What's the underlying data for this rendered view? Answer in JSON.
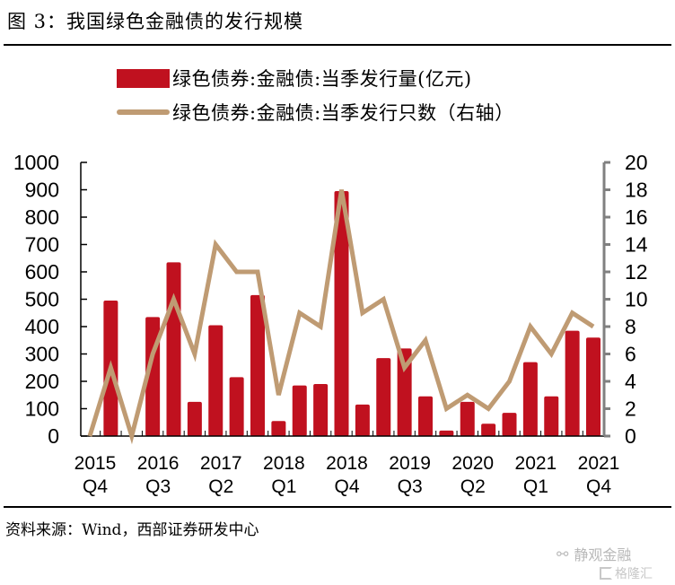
{
  "header": {
    "title": "图 3：我国绿色金融债的发行规模"
  },
  "legend": {
    "items": [
      {
        "label": "绿色债券:金融债:当季发行量(亿元)",
        "type": "bar",
        "color": "#C0111F"
      },
      {
        "label": "绿色债券:金融债:当季发行只数（右轴）",
        "type": "line",
        "color": "#BF9B73"
      }
    ]
  },
  "chart_data": {
    "type": "bar+line",
    "title": "我国绿色金融债的发行规模",
    "categories": [
      "2015Q4",
      "2016Q1",
      "2016Q2",
      "2016Q3",
      "2016Q4",
      "2017Q1",
      "2017Q2",
      "2017Q3",
      "2017Q4",
      "2018Q1",
      "2018Q2",
      "2018Q3",
      "2018Q4",
      "2019Q1",
      "2019Q2",
      "2019Q3",
      "2019Q4",
      "2020Q1",
      "2020Q2",
      "2020Q3",
      "2020Q4",
      "2021Q1",
      "2021Q2",
      "2021Q3",
      "2021Q4"
    ],
    "tick_labels": [
      {
        "index": 0,
        "year": "2015",
        "quarter": "Q4"
      },
      {
        "index": 3,
        "year": "2016",
        "quarter": "Q3"
      },
      {
        "index": 6,
        "year": "2017",
        "quarter": "Q2"
      },
      {
        "index": 9,
        "year": "2018",
        "quarter": "Q1"
      },
      {
        "index": 12,
        "year": "2018",
        "quarter": "Q4"
      },
      {
        "index": 15,
        "year": "2019",
        "quarter": "Q3"
      },
      {
        "index": 18,
        "year": "2020",
        "quarter": "Q2"
      },
      {
        "index": 21,
        "year": "2021",
        "quarter": "Q1"
      },
      {
        "index": 24,
        "year": "2021",
        "quarter": "Q4"
      }
    ],
    "series": [
      {
        "name": "绿色债券:金融债:当季发行量(亿元)",
        "type": "bar",
        "axis": "left",
        "color": "#C0111F",
        "values": [
          0,
          495,
          0,
          435,
          635,
          125,
          405,
          215,
          515,
          55,
          185,
          190,
          895,
          115,
          285,
          320,
          145,
          20,
          125,
          45,
          85,
          270,
          145,
          385,
          360
        ]
      },
      {
        "name": "绿色债券:金融债:当季发行只数（右轴）",
        "type": "line",
        "axis": "right",
        "color": "#BF9B73",
        "values": [
          0,
          5,
          0,
          6,
          10,
          6,
          14,
          12,
          12,
          3,
          9,
          8,
          18,
          9,
          10,
          5,
          7,
          2,
          3,
          2,
          4,
          8,
          6,
          9,
          8
        ]
      }
    ],
    "left_axis": {
      "min": 0,
      "max": 1000,
      "step": 100,
      "ticks": [
        "0",
        "100",
        "200",
        "300",
        "400",
        "500",
        "600",
        "700",
        "800",
        "900",
        "1000"
      ]
    },
    "right_axis": {
      "min": 0,
      "max": 20,
      "step": 2,
      "ticks": [
        "0",
        "2",
        "4",
        "6",
        "8",
        "10",
        "12",
        "14",
        "16",
        "18",
        "20"
      ],
      "color": "#808080"
    },
    "xlabel": "",
    "ylabel": "",
    "grid": false,
    "legend_position": "top"
  },
  "footer": {
    "source": "资料来源：Wind，西部证券研发中心"
  },
  "watermark": {
    "wechat_name": "静观金融",
    "site_name": "格隆汇"
  }
}
